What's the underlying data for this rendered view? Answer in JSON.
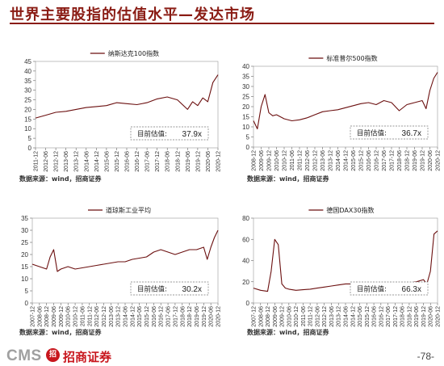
{
  "page": {
    "title": "世界主要股指的估值水平—发达市场",
    "page_number": "-78-"
  },
  "footer": {
    "logo_cms": "CMS",
    "logo_mark": "招",
    "logo_cn": "招商证券"
  },
  "colors": {
    "line": "#6b0f0f",
    "title": "#8a1c14",
    "brand": "#c8161d"
  },
  "chart_data": [
    {
      "type": "line",
      "series": [
        {
          "name": "纳斯达克100指数"
        }
      ],
      "annotation": "目前估值:",
      "current_value": "37.9x",
      "source": "数据来源：wind，招商证券",
      "ylim": [
        0,
        45
      ],
      "yticks": [
        "0",
        "5",
        "10",
        "15",
        "20",
        "25",
        "30",
        "35",
        "40",
        "45"
      ],
      "xticks": [
        "2011-12",
        "2012-06",
        "2012-12",
        "2013-06",
        "2013-12",
        "2014-06",
        "2014-12",
        "2015-06",
        "2015-12",
        "2016-06",
        "2016-12",
        "2017-06",
        "2017-12",
        "2018-06",
        "2018-12",
        "2019-06",
        "2019-12",
        "2020-06",
        "2020-12"
      ],
      "x": [
        0,
        1,
        2,
        3,
        4,
        5,
        6,
        7,
        8,
        9,
        10,
        11,
        12,
        13,
        14,
        15,
        15.5,
        16,
        16.5,
        17,
        17.5,
        18
      ],
      "values": [
        15.5,
        17,
        18.5,
        19,
        20,
        21,
        21.5,
        22,
        23.5,
        23,
        22.5,
        23.5,
        25.5,
        26.5,
        25,
        20,
        24,
        22,
        26,
        24,
        34,
        38
      ]
    },
    {
      "type": "line",
      "series": [
        {
          "name": "标准普尔500指数"
        }
      ],
      "annotation": "目前估值:",
      "current_value": "36.7x",
      "source": "数据来源：wind，招商证券",
      "ylim": [
        0,
        40
      ],
      "yticks": [
        "0",
        "5",
        "10",
        "15",
        "20",
        "25",
        "30",
        "35",
        "40"
      ],
      "xticks": [
        "2008-12",
        "2009-06",
        "2009-12",
        "2010-06",
        "2010-12",
        "2011-06",
        "2011-12",
        "2012-06",
        "2012-12",
        "2013-06",
        "2013-12",
        "2014-06",
        "2014-12",
        "2015-06",
        "2015-12",
        "2016-06",
        "2016-12",
        "2017-06",
        "2017-12",
        "2018-06",
        "2018-12",
        "2019-06",
        "2019-12",
        "2020-06",
        "2020-12"
      ],
      "x": [
        0,
        0.5,
        1,
        1.5,
        2,
        2.5,
        3,
        4,
        5,
        6,
        7,
        8,
        9,
        10,
        11,
        12,
        13,
        14,
        15,
        16,
        17,
        18,
        19,
        20,
        21,
        22,
        22.5,
        23,
        23.5,
        24
      ],
      "values": [
        13,
        9,
        20,
        26,
        17,
        15.5,
        16,
        14,
        13,
        13.5,
        14.5,
        16,
        17.5,
        18,
        18.5,
        19.5,
        20.5,
        21.5,
        22,
        21,
        23,
        22,
        18,
        21,
        22,
        23,
        19,
        28,
        34,
        37
      ]
    },
    {
      "type": "line",
      "series": [
        {
          "name": "道琼斯工业平均"
        }
      ],
      "annotation": "目前估值:",
      "current_value": "30.2x",
      "source": "数据来源：wind，招商证券",
      "ylim": [
        0,
        35
      ],
      "yticks": [
        "0",
        "5",
        "10",
        "15",
        "20",
        "25",
        "30",
        "35"
      ],
      "xticks": [
        "2007-12",
        "2008-06",
        "2008-12",
        "2009-06",
        "2009-12",
        "2010-06",
        "2010-12",
        "2011-06",
        "2011-12",
        "2012-06",
        "2012-12",
        "2013-06",
        "2013-12",
        "2014-06",
        "2014-12",
        "2015-06",
        "2015-12",
        "2016-06",
        "2016-12",
        "2017-06",
        "2017-12",
        "2018-06",
        "2018-12",
        "2019-06",
        "2019-12",
        "2020-06",
        "2020-12"
      ],
      "x": [
        0,
        1,
        2,
        2.5,
        3,
        3.5,
        4,
        5,
        6,
        7,
        8,
        9,
        10,
        11,
        12,
        13,
        14,
        15,
        16,
        17,
        18,
        19,
        20,
        21,
        22,
        23,
        24,
        24.5,
        25,
        25.5,
        26
      ],
      "values": [
        16,
        15,
        14,
        19,
        22,
        13,
        14,
        15,
        14,
        14.5,
        15,
        15.5,
        16,
        16.5,
        17,
        17,
        18,
        18.5,
        19,
        21,
        22,
        21,
        20,
        21,
        22,
        22,
        23,
        18,
        23,
        27,
        30
      ]
    },
    {
      "type": "line",
      "series": [
        {
          "name": "德国DAX30指数"
        }
      ],
      "annotation": "目前估值:",
      "current_value": "66.3x",
      "source": "数据来源：wind，招商证券",
      "ylim": [
        0,
        80
      ],
      "yticks": [
        "0",
        "20",
        "40",
        "60",
        "80"
      ],
      "xticks": [
        "2007-12",
        "2008-06",
        "2008-12",
        "2009-06",
        "2009-12",
        "2010-06",
        "2010-12",
        "2011-06",
        "2011-12",
        "2012-06",
        "2012-12",
        "2013-06",
        "2013-12",
        "2014-06",
        "2014-12",
        "2015-06",
        "2015-12",
        "2016-06",
        "2016-12",
        "2017-06",
        "2017-12",
        "2018-06",
        "2018-12",
        "2019-06",
        "2019-12",
        "2020-06",
        "2020-12"
      ],
      "x": [
        0,
        1,
        2,
        2.5,
        3,
        3.5,
        4,
        4.5,
        5,
        6,
        7,
        8,
        9,
        10,
        11,
        12,
        13,
        14,
        15,
        16,
        17,
        18,
        19,
        20,
        21,
        22,
        23,
        24,
        24.5,
        25,
        25.5,
        26
      ],
      "values": [
        14,
        12,
        11,
        30,
        60,
        55,
        18,
        14,
        13,
        12,
        12.5,
        13,
        14,
        15,
        16,
        17,
        18,
        18,
        17,
        18,
        19,
        18,
        17,
        18,
        18.5,
        19,
        20,
        22,
        18,
        30,
        65,
        68
      ]
    }
  ]
}
